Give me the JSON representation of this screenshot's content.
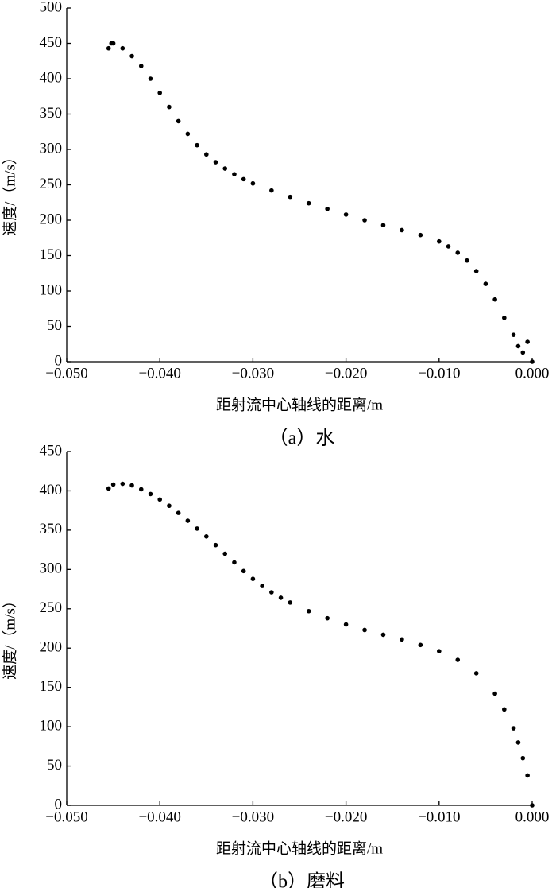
{
  "chart_data": [
    {
      "type": "scatter",
      "caption": "（a）水",
      "x_label": "距射流中心轴线的距离/m",
      "y_label": "速度/（m/s）",
      "color": "#000000",
      "x": [
        -0.0455,
        -0.0452,
        -0.045,
        -0.044,
        -0.043,
        -0.042,
        -0.041,
        -0.04,
        -0.039,
        -0.038,
        -0.037,
        -0.036,
        -0.035,
        -0.034,
        -0.033,
        -0.032,
        -0.031,
        -0.03,
        -0.028,
        -0.026,
        -0.024,
        -0.022,
        -0.02,
        -0.018,
        -0.016,
        -0.014,
        -0.012,
        -0.01,
        -0.009,
        -0.008,
        -0.007,
        -0.006,
        -0.005,
        -0.004,
        -0.003,
        -0.002,
        -0.0015,
        -0.001,
        -0.0005,
        0
      ],
      "values": [
        443,
        450,
        450,
        443,
        432,
        418,
        400,
        380,
        360,
        340,
        322,
        306,
        293,
        282,
        273,
        265,
        258,
        252,
        242,
        233,
        224,
        216,
        208,
        200,
        193,
        186,
        179,
        170,
        163,
        154,
        143,
        128,
        110,
        88,
        62,
        38,
        22,
        13,
        28,
        0
      ],
      "xlim": [
        -0.05,
        0
      ],
      "ylim": [
        0,
        500
      ],
      "xticks": [
        {
          "value": -0.05,
          "label": "−0.050"
        },
        {
          "value": -0.04,
          "label": "−0.040"
        },
        {
          "value": -0.03,
          "label": "−0.030"
        },
        {
          "value": -0.02,
          "label": "−0.020"
        },
        {
          "value": -0.01,
          "label": "−0.010"
        },
        {
          "value": 0,
          "label": "0.000"
        }
      ],
      "yticks": [
        0,
        50,
        100,
        150,
        200,
        250,
        300,
        350,
        400,
        450,
        500
      ]
    },
    {
      "type": "scatter",
      "caption": "（b）磨料",
      "x_label": "距射流中心轴线的距离/m",
      "y_label": "速度/（m/s）",
      "color": "#000000",
      "x": [
        -0.0455,
        -0.045,
        -0.044,
        -0.043,
        -0.042,
        -0.041,
        -0.04,
        -0.039,
        -0.038,
        -0.037,
        -0.036,
        -0.035,
        -0.034,
        -0.033,
        -0.032,
        -0.031,
        -0.03,
        -0.029,
        -0.028,
        -0.027,
        -0.026,
        -0.024,
        -0.022,
        -0.02,
        -0.018,
        -0.016,
        -0.014,
        -0.012,
        -0.01,
        -0.008,
        -0.006,
        -0.004,
        -0.003,
        -0.002,
        -0.0015,
        -0.001,
        -0.0005,
        0
      ],
      "values": [
        403,
        408,
        409,
        407,
        402,
        396,
        389,
        381,
        372,
        362,
        352,
        342,
        331,
        320,
        309,
        298,
        288,
        279,
        271,
        264,
        258,
        247,
        238,
        230,
        223,
        217,
        211,
        204,
        196,
        185,
        168,
        142,
        122,
        98,
        80,
        60,
        38,
        0
      ],
      "xlim": [
        -0.05,
        0
      ],
      "ylim": [
        0,
        450
      ],
      "xticks": [
        {
          "value": -0.05,
          "label": "−0.050"
        },
        {
          "value": -0.04,
          "label": "−0.040"
        },
        {
          "value": -0.03,
          "label": "−0.030"
        },
        {
          "value": -0.02,
          "label": "−0.020"
        },
        {
          "value": -0.01,
          "label": "−0.010"
        },
        {
          "value": 0,
          "label": "0.000"
        }
      ],
      "yticks": [
        0,
        50,
        100,
        150,
        200,
        250,
        300,
        350,
        400,
        450
      ]
    }
  ]
}
